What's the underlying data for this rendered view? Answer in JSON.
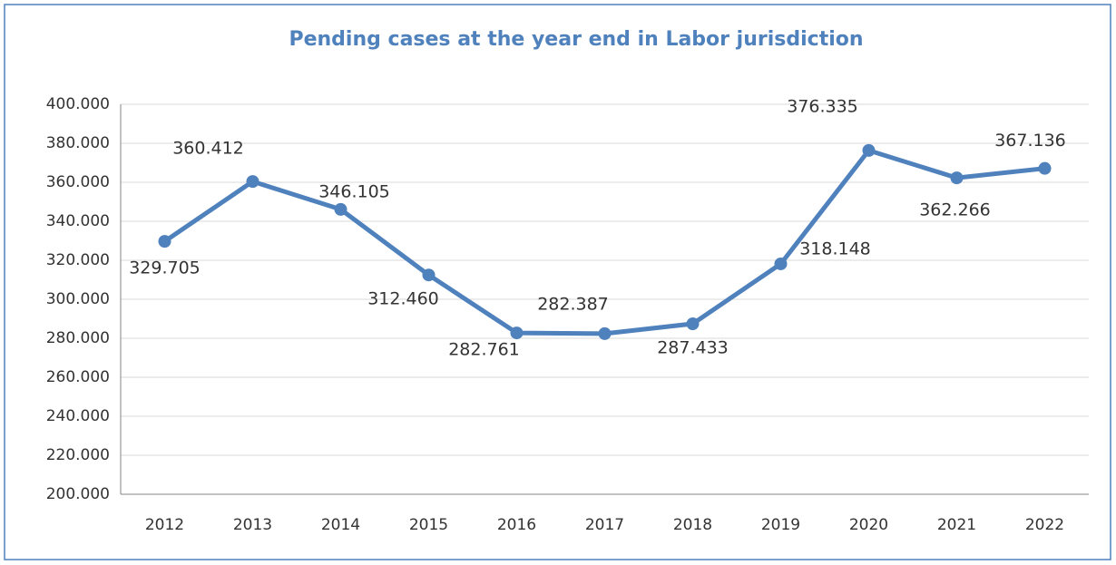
{
  "chart_data": {
    "type": "line",
    "title": "Pending cases at the year end in Labor jurisdiction",
    "categories": [
      "2012",
      "2013",
      "2014",
      "2015",
      "2016",
      "2017",
      "2018",
      "2019",
      "2020",
      "2021",
      "2022"
    ],
    "series": [
      {
        "name": "Pending cases",
        "color": "#4f81bd",
        "values": [
          329705,
          360412,
          346105,
          312460,
          282761,
          282387,
          287433,
          318148,
          376335,
          362266,
          367136
        ],
        "value_labels": [
          "329.705",
          "360.412",
          "346.105",
          "312.460",
          "282.761",
          "282.387",
          "287.433",
          "318.148",
          "376.335",
          "362.266",
          "367.136"
        ]
      }
    ],
    "ylim": [
      200000,
      400000
    ],
    "yticks": [
      {
        "value": 200000,
        "label": "200.000"
      },
      {
        "value": 220000,
        "label": "220.000"
      },
      {
        "value": 240000,
        "label": "240.000"
      },
      {
        "value": 260000,
        "label": "260.000"
      },
      {
        "value": 280000,
        "label": "280.000"
      },
      {
        "value": 300000,
        "label": "300.000"
      },
      {
        "value": 320000,
        "label": "320.000"
      },
      {
        "value": 340000,
        "label": "340.000"
      },
      {
        "value": 360000,
        "label": "360.000"
      },
      {
        "value": 380000,
        "label": "380.000"
      },
      {
        "value": 400000,
        "label": "400.000"
      }
    ],
    "grid": true
  }
}
